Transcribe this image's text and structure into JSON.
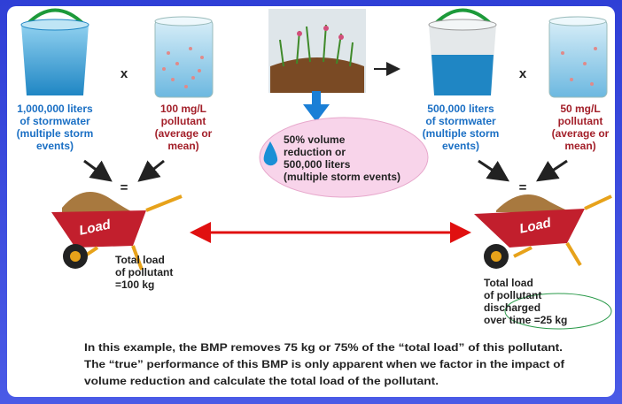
{
  "left_volume": [
    "1,000,000 liters",
    "of stormwater",
    "(multiple storm",
    "events)"
  ],
  "left_concentration": [
    "100 mg/L",
    "pollutant",
    "(average or",
    "mean)"
  ],
  "bmp_reduction": [
    "50% volume",
    "reduction or",
    "500,000 liters",
    "(multiple storm events)"
  ],
  "right_volume": [
    "500,000 liters",
    "of stormwater",
    "(multiple storm",
    "events)"
  ],
  "right_concentration": [
    "50 mg/L",
    "pollutant",
    "(average or",
    "mean)"
  ],
  "operators": {
    "multiply": "x",
    "equals": "="
  },
  "load_label": "Load",
  "left_result": [
    "Total load",
    "of pollutant",
    "=100 kg"
  ],
  "right_result": [
    "Total load",
    "of pollutant",
    "discharged",
    "over time =25 kg"
  ],
  "footer": [
    "In this example, the BMP removes 75 kg or 75% of the “total load” of this pollutant.",
    "The “true” performance of this BMP is only apparent when we factor in the impact of",
    "volume reduction and calculate the total load of the pollutant."
  ]
}
